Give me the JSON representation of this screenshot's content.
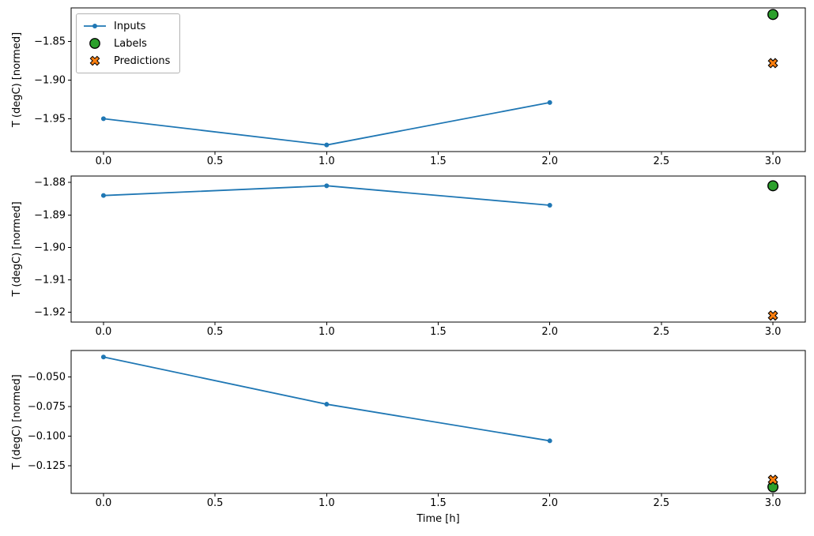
{
  "figure": {
    "xlabel": "Time [h]",
    "background_color": "#ffffff",
    "axes_edge_color": "#000000",
    "legend": {
      "position": "upper-left-of-first-subplot",
      "entries": [
        {
          "label": "Inputs",
          "marker": "line-with-dot",
          "color": "#1f77b4"
        },
        {
          "label": "Labels",
          "marker": "circle",
          "color": "#2ca02c",
          "edgecolor": "#000000"
        },
        {
          "label": "Predictions",
          "marker": "X",
          "color": "#ff7f0e",
          "edgecolor": "#000000"
        }
      ]
    }
  },
  "chart_data": [
    {
      "type": "line",
      "subplot": 1,
      "ylabel": "T (degC) [normed]",
      "xlabel": "",
      "grid": false,
      "xlim": [
        -0.145,
        3.145
      ],
      "ylim": [
        -1.9925,
        -1.8065
      ],
      "xticks": [
        0.0,
        0.5,
        1.0,
        1.5,
        2.0,
        2.5,
        3.0
      ],
      "xtick_labels": [
        "0.0",
        "0.5",
        "1.0",
        "1.5",
        "2.0",
        "2.5",
        "3.0"
      ],
      "yticks": [
        -1.85,
        -1.9,
        -1.95
      ],
      "ytick_labels": [
        "−1.85",
        "−1.90",
        "−1.95"
      ],
      "series": [
        {
          "name": "Inputs",
          "kind": "line",
          "marker": "dot",
          "color": "#1f77b4",
          "x": [
            0,
            1,
            2
          ],
          "y": [
            -1.95,
            -1.984,
            -1.929
          ]
        },
        {
          "name": "Labels",
          "kind": "scatter",
          "marker": "circle",
          "color": "#2ca02c",
          "edgecolor": "#000000",
          "x": [
            3
          ],
          "y": [
            -1.815
          ]
        },
        {
          "name": "Predictions",
          "kind": "scatter",
          "marker": "X",
          "color": "#ff7f0e",
          "edgecolor": "#000000",
          "x": [
            3
          ],
          "y": [
            -1.878
          ]
        }
      ],
      "legend": true
    },
    {
      "type": "line",
      "subplot": 2,
      "ylabel": "T (degC) [normed]",
      "xlabel": "",
      "grid": false,
      "xlim": [
        -0.145,
        3.145
      ],
      "ylim": [
        -1.923,
        -1.878
      ],
      "xticks": [
        0.0,
        0.5,
        1.0,
        1.5,
        2.0,
        2.5,
        3.0
      ],
      "xtick_labels": [
        "0.0",
        "0.5",
        "1.0",
        "1.5",
        "2.0",
        "2.5",
        "3.0"
      ],
      "yticks": [
        -1.88,
        -1.89,
        -1.9,
        -1.91,
        -1.92
      ],
      "ytick_labels": [
        "−1.88",
        "−1.89",
        "−1.90",
        "−1.91",
        "−1.92"
      ],
      "series": [
        {
          "name": "Inputs",
          "kind": "line",
          "marker": "dot",
          "color": "#1f77b4",
          "x": [
            0,
            1,
            2
          ],
          "y": [
            -1.884,
            -1.881,
            -1.887
          ]
        },
        {
          "name": "Labels",
          "kind": "scatter",
          "marker": "circle",
          "color": "#2ca02c",
          "edgecolor": "#000000",
          "x": [
            3
          ],
          "y": [
            -1.881
          ]
        },
        {
          "name": "Predictions",
          "kind": "scatter",
          "marker": "X",
          "color": "#ff7f0e",
          "edgecolor": "#000000",
          "x": [
            3
          ],
          "y": [
            -1.921
          ]
        }
      ],
      "legend": false
    },
    {
      "type": "line",
      "subplot": 3,
      "ylabel": "T (degC) [normed]",
      "xlabel": "Time [h]",
      "grid": false,
      "xlim": [
        -0.145,
        3.145
      ],
      "ylim": [
        -0.1485,
        -0.0275
      ],
      "xticks": [
        0.0,
        0.5,
        1.0,
        1.5,
        2.0,
        2.5,
        3.0
      ],
      "xtick_labels": [
        "0.0",
        "0.5",
        "1.0",
        "1.5",
        "2.0",
        "2.5",
        "3.0"
      ],
      "yticks": [
        -0.05,
        -0.075,
        -0.1,
        -0.125
      ],
      "ytick_labels": [
        "−0.050",
        "−0.075",
        "−0.100",
        "−0.125"
      ],
      "series": [
        {
          "name": "Inputs",
          "kind": "line",
          "marker": "dot",
          "color": "#1f77b4",
          "x": [
            0,
            1,
            2
          ],
          "y": [
            -0.033,
            -0.073,
            -0.104
          ]
        },
        {
          "name": "Labels",
          "kind": "scatter",
          "marker": "circle",
          "color": "#2ca02c",
          "edgecolor": "#000000",
          "x": [
            3
          ],
          "y": [
            -0.143
          ]
        },
        {
          "name": "Predictions",
          "kind": "scatter",
          "marker": "X",
          "color": "#ff7f0e",
          "edgecolor": "#000000",
          "x": [
            3
          ],
          "y": [
            -0.137
          ]
        }
      ],
      "legend": false
    }
  ]
}
